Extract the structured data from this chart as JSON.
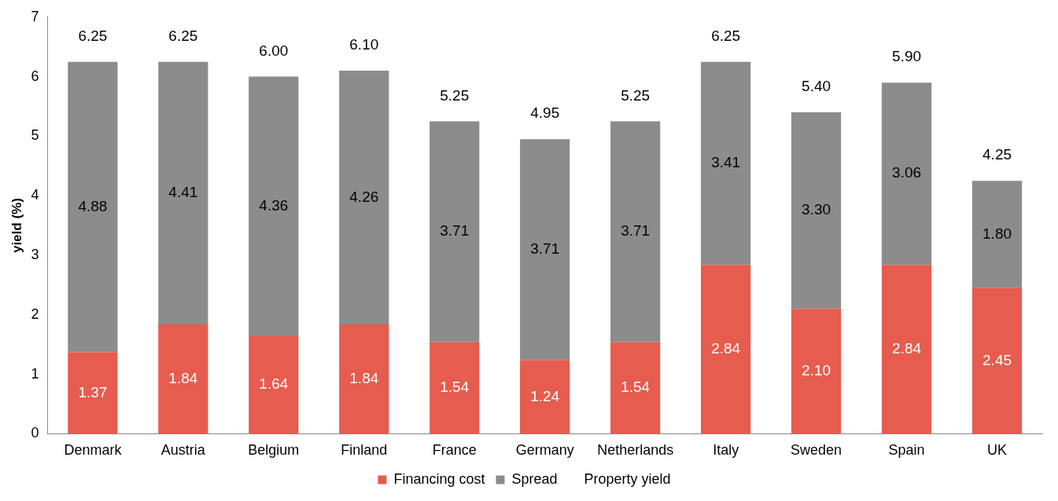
{
  "chart_data": {
    "type": "bar",
    "stacked": true,
    "ylabel": "yield (%)",
    "categories": [
      "Denmark",
      "Austria",
      "Belgium",
      "Finland",
      "France",
      "Germany",
      "Netherlands",
      "Italy",
      "Sweden",
      "Spain",
      "UK"
    ],
    "series": [
      {
        "name": "Financing cost",
        "color": "#e65c4e",
        "values": [
          1.37,
          1.84,
          1.64,
          1.84,
          1.54,
          1.24,
          1.54,
          2.84,
          2.1,
          2.84,
          2.45
        ],
        "value_labels": [
          "1.37",
          "1.84",
          "1.64",
          "1.84",
          "1.54",
          "1.24",
          "1.54",
          "2.84",
          "2.10",
          "2.84",
          "2.45"
        ]
      },
      {
        "name": "Spread",
        "color": "#8c8c8c",
        "values": [
          4.88,
          4.41,
          4.36,
          4.26,
          3.71,
          3.71,
          3.71,
          3.41,
          3.3,
          3.06,
          1.8
        ],
        "value_labels": [
          "4.88",
          "4.41",
          "4.36",
          "4.26",
          "3.71",
          "3.71",
          "3.71",
          "3.41",
          "3.30",
          "3.06",
          "1.80"
        ]
      },
      {
        "name": "Property yield",
        "values": [
          null,
          null,
          null,
          null,
          null,
          null,
          null,
          null,
          null,
          null,
          null
        ]
      }
    ],
    "totals": [
      "6.25",
      "6.25",
      "6.00",
      "6.10",
      "5.25",
      "4.95",
      "5.25",
      "6.25",
      "5.40",
      "5.90",
      "4.25"
    ],
    "ylim": [
      0,
      7
    ],
    "yticks": [
      0,
      1,
      2,
      3,
      4,
      5,
      6,
      7
    ],
    "grid": false,
    "legend": "bottom"
  }
}
